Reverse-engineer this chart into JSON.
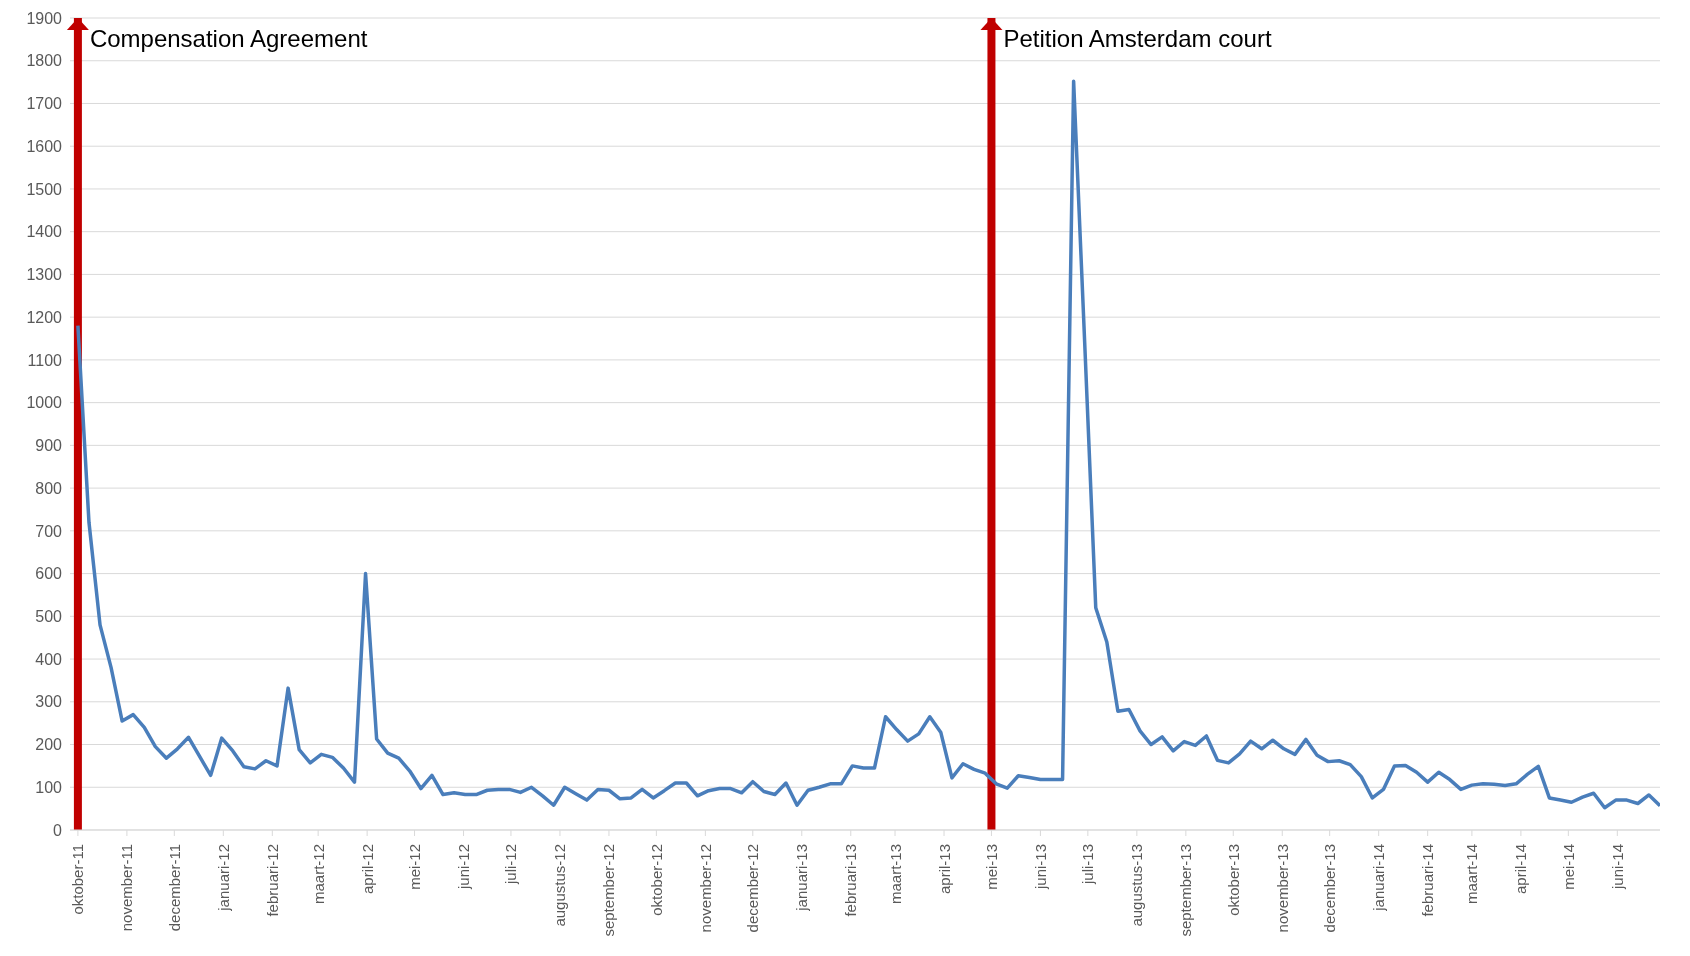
{
  "chart_data": {
    "type": "line",
    "color": "#4a7ebb",
    "x": [
      "2011-10-01",
      "2011-10-08",
      "2011-10-15",
      "2011-10-22",
      "2011-10-29",
      "2011-11-05",
      "2011-11-12",
      "2011-11-19",
      "2011-11-26",
      "2011-12-03",
      "2011-12-10",
      "2011-12-17",
      "2011-12-24",
      "2011-12-31",
      "2012-01-07",
      "2012-01-14",
      "2012-01-21",
      "2012-01-28",
      "2012-02-04",
      "2012-02-11",
      "2012-02-18",
      "2012-02-25",
      "2012-03-03",
      "2012-03-10",
      "2012-03-17",
      "2012-03-24",
      "2012-03-31",
      "2012-04-07",
      "2012-04-14",
      "2012-04-21",
      "2012-04-28",
      "2012-05-05",
      "2012-05-12",
      "2012-05-19",
      "2012-05-26",
      "2012-06-02",
      "2012-06-09",
      "2012-06-16",
      "2012-06-23",
      "2012-06-30",
      "2012-07-07",
      "2012-07-14",
      "2012-07-21",
      "2012-07-28",
      "2012-08-04",
      "2012-08-11",
      "2012-08-18",
      "2012-08-25",
      "2012-09-01",
      "2012-09-08",
      "2012-09-15",
      "2012-09-22",
      "2012-09-29",
      "2012-10-06",
      "2012-10-13",
      "2012-10-20",
      "2012-10-27",
      "2012-11-03",
      "2012-11-10",
      "2012-11-17",
      "2012-11-24",
      "2012-12-01",
      "2012-12-08",
      "2012-12-15",
      "2012-12-22",
      "2012-12-29",
      "2013-01-05",
      "2013-01-12",
      "2013-01-19",
      "2013-01-26",
      "2013-02-02",
      "2013-02-09",
      "2013-02-16",
      "2013-02-23",
      "2013-03-02",
      "2013-03-09",
      "2013-03-16",
      "2013-03-23",
      "2013-03-30",
      "2013-04-06",
      "2013-04-13",
      "2013-04-20",
      "2013-04-27",
      "2013-05-04",
      "2013-05-11",
      "2013-05-18",
      "2013-05-25",
      "2013-06-01",
      "2013-06-08",
      "2013-06-15",
      "2013-06-22",
      "2013-06-29",
      "2013-07-06",
      "2013-07-13",
      "2013-07-20",
      "2013-07-27",
      "2013-08-03",
      "2013-08-10",
      "2013-08-17",
      "2013-08-24",
      "2013-08-31",
      "2013-09-07",
      "2013-09-14",
      "2013-09-21",
      "2013-09-28",
      "2013-10-05",
      "2013-10-12",
      "2013-10-19",
      "2013-10-26",
      "2013-11-02",
      "2013-11-09",
      "2013-11-16",
      "2013-11-23",
      "2013-11-30",
      "2013-12-07",
      "2013-12-14",
      "2013-12-21",
      "2013-12-28",
      "2014-01-04",
      "2014-01-11",
      "2014-01-18",
      "2014-01-25",
      "2014-02-01",
      "2014-02-08",
      "2014-02-15",
      "2014-02-22",
      "2014-03-01",
      "2014-03-08",
      "2014-03-15",
      "2014-03-22",
      "2014-03-29",
      "2014-04-05",
      "2014-04-12",
      "2014-04-19",
      "2014-04-26",
      "2014-05-03",
      "2014-05-10",
      "2014-05-17",
      "2014-05-24",
      "2014-05-31",
      "2014-06-07",
      "2014-06-14",
      "2014-06-21",
      "2014-06-28"
    ],
    "values": [
      1180,
      720,
      480,
      380,
      255,
      270,
      240,
      195,
      168,
      190,
      217,
      172,
      128,
      215,
      185,
      148,
      143,
      162,
      150,
      332,
      188,
      157,
      177,
      170,
      145,
      112,
      600,
      213,
      180,
      168,
      138,
      97,
      128,
      83,
      87,
      83,
      83,
      93,
      95,
      95,
      88,
      100,
      80,
      58,
      100,
      85,
      70,
      95,
      93,
      73,
      75,
      95,
      75,
      92,
      110,
      110,
      80,
      92,
      97,
      97,
      87,
      113,
      90,
      83,
      110,
      58,
      93,
      100,
      108,
      108,
      150,
      145,
      145,
      265,
      235,
      208,
      225,
      265,
      228,
      122,
      155,
      142,
      133,
      108,
      98,
      127,
      123,
      118,
      118,
      118,
      1752,
      1140,
      520,
      440,
      278,
      282,
      232,
      200,
      218,
      185,
      207,
      198,
      220,
      163,
      157,
      178,
      208,
      190,
      210,
      190,
      177,
      212,
      175,
      160,
      162,
      153,
      125,
      75,
      95,
      150,
      151,
      135,
      112,
      135,
      118,
      95,
      105,
      108,
      107,
      104,
      108,
      130,
      149,
      75,
      70,
      65,
      77,
      86,
      52,
      70,
      70,
      62,
      82,
      57
    ],
    "xlim": [
      "2011-09-26",
      "2014-06-28"
    ],
    "xticks": [
      {
        "value": "2011-10-01",
        "label": "oktober-11"
      },
      {
        "value": "2011-11-01",
        "label": "november-11"
      },
      {
        "value": "2011-12-01",
        "label": "december-11"
      },
      {
        "value": "2012-01-01",
        "label": "januari-12"
      },
      {
        "value": "2012-02-01",
        "label": "februari-12"
      },
      {
        "value": "2012-03-01",
        "label": "maart-12"
      },
      {
        "value": "2012-04-01",
        "label": "april-12"
      },
      {
        "value": "2012-05-01",
        "label": "mei-12"
      },
      {
        "value": "2012-06-01",
        "label": "juni-12"
      },
      {
        "value": "2012-07-01",
        "label": "juli-12"
      },
      {
        "value": "2012-08-01",
        "label": "augustus-12"
      },
      {
        "value": "2012-09-01",
        "label": "september-12"
      },
      {
        "value": "2012-10-01",
        "label": "oktober-12"
      },
      {
        "value": "2012-11-01",
        "label": "november-12"
      },
      {
        "value": "2012-12-01",
        "label": "december-12"
      },
      {
        "value": "2013-01-01",
        "label": "januari-13"
      },
      {
        "value": "2013-02-01",
        "label": "februari-13"
      },
      {
        "value": "2013-03-01",
        "label": "maart-13"
      },
      {
        "value": "2013-04-01",
        "label": "april-13"
      },
      {
        "value": "2013-05-01",
        "label": "mei-13"
      },
      {
        "value": "2013-06-01",
        "label": "juni-13"
      },
      {
        "value": "2013-07-01",
        "label": "juli-13"
      },
      {
        "value": "2013-08-01",
        "label": "augustus-13"
      },
      {
        "value": "2013-09-01",
        "label": "september-13"
      },
      {
        "value": "2013-10-01",
        "label": "oktober-13"
      },
      {
        "value": "2013-11-01",
        "label": "november-13"
      },
      {
        "value": "2013-12-01",
        "label": "december-13"
      },
      {
        "value": "2014-01-01",
        "label": "januari-14"
      },
      {
        "value": "2014-02-01",
        "label": "februari-14"
      },
      {
        "value": "2014-03-01",
        "label": "maart-14"
      },
      {
        "value": "2014-04-01",
        "label": "april-14"
      },
      {
        "value": "2014-05-01",
        "label": "mei-14"
      },
      {
        "value": "2014-06-01",
        "label": "juni-14"
      }
    ],
    "ylim": [
      0,
      1900
    ],
    "yticks": [
      0,
      100,
      200,
      300,
      400,
      500,
      600,
      700,
      800,
      900,
      1000,
      1100,
      1200,
      1300,
      1400,
      1500,
      1600,
      1700,
      1800,
      1900
    ],
    "grid": "y",
    "marker": "none",
    "line_style": "solid",
    "legend": false,
    "ref_lines": [
      {
        "axis": "x",
        "value": "2011-10-01",
        "label": "Compensation Agreement",
        "color": "#c00000"
      },
      {
        "axis": "x",
        "value": "2013-05-01",
        "label": "Petition Amsterdam court",
        "color": "#c00000"
      }
    ]
  }
}
